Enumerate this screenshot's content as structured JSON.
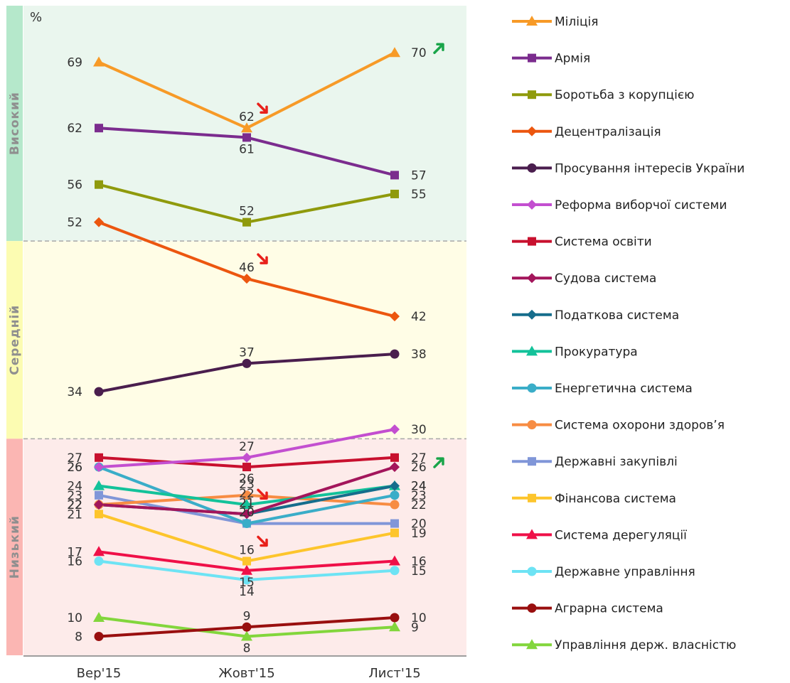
{
  "chart_data": {
    "type": "line",
    "ylabel": "%",
    "categories": [
      "Вер'15",
      "Жовт'15",
      "Лист'15"
    ],
    "ylim": [
      6,
      75
    ],
    "grid": false,
    "legend": "right",
    "zones": [
      {
        "label": "Високий",
        "from": 50,
        "to": 75,
        "bg": "#eaf6ee",
        "bar": "#b5e8cb"
      },
      {
        "label": "Середній",
        "from": 29,
        "to": 50,
        "bg": "#fffde6",
        "bar": "#fcfcb2"
      },
      {
        "label": "Низький",
        "from": 6,
        "to": 29,
        "bg": "#fdebea",
        "bar": "#fbb6b3"
      }
    ],
    "series": [
      {
        "name": "Міліція",
        "color": "#f79a27",
        "marker": "triangle",
        "values": [
          69,
          62,
          70
        ],
        "change": [
          null,
          "down",
          "up"
        ]
      },
      {
        "name": "Армія",
        "color": "#7b2c8e",
        "marker": "square",
        "values": [
          62,
          61,
          57
        ]
      },
      {
        "name": "Боротьба з корупцією",
        "color": "#8f9a0c",
        "marker": "square",
        "values": [
          56,
          52,
          55
        ]
      },
      {
        "name": "Децентралізація",
        "color": "#ec560f",
        "marker": "diamond",
        "values": [
          52,
          46,
          42
        ],
        "change": [
          null,
          "down",
          null
        ]
      },
      {
        "name": "Просування інтересів України",
        "color": "#4a1e4e",
        "marker": "circle",
        "values": [
          34,
          37,
          38
        ]
      },
      {
        "name": "Реформа виборчої системи",
        "color": "#c34fd0",
        "marker": "diamond",
        "values": [
          26,
          27,
          30
        ]
      },
      {
        "name": "Система освіти",
        "color": "#c8102e",
        "marker": "square",
        "values": [
          27,
          26,
          27
        ]
      },
      {
        "name": "Судова система",
        "color": "#a3155b",
        "marker": "diamond",
        "values": [
          22,
          21,
          26
        ],
        "change": [
          null,
          "down",
          "up"
        ]
      },
      {
        "name": "Податкова система",
        "color": "#166d8c",
        "marker": "diamond",
        "values": [
          22,
          21,
          24
        ]
      },
      {
        "name": "Прокуратура",
        "color": "#13c29a",
        "marker": "triangle",
        "values": [
          24,
          22,
          24
        ]
      },
      {
        "name": "Енергетична система",
        "color": "#3aadc8",
        "marker": "circle",
        "values": [
          26,
          20,
          23
        ]
      },
      {
        "name": "Система охорони здоров’я",
        "color": "#f78c43",
        "marker": "circle",
        "values": [
          22,
          23,
          22
        ]
      },
      {
        "name": "Державні закупівлі",
        "color": "#8096d8",
        "marker": "square",
        "values": [
          23,
          20,
          20
        ]
      },
      {
        "name": "Фінансова система",
        "color": "#fdc52c",
        "marker": "square",
        "values": [
          21,
          16,
          19
        ],
        "change": [
          null,
          "down",
          null
        ]
      },
      {
        "name": "Система дерегуляції",
        "color": "#ef1048",
        "marker": "triangle",
        "values": [
          17,
          15,
          16
        ]
      },
      {
        "name": "Державне управління",
        "color": "#6de3f4",
        "marker": "circle",
        "values": [
          16,
          14,
          15
        ]
      },
      {
        "name": "Аграрна система",
        "color": "#990f0f",
        "marker": "circle",
        "values": [
          8,
          9,
          10
        ]
      },
      {
        "name": "Управління держ. власністю",
        "color": "#82d63c",
        "marker": "triangle",
        "values": [
          10,
          8,
          9
        ]
      }
    ],
    "point_labels": [
      {
        "text": "69",
        "series": 0,
        "x": 0
      },
      {
        "text": "62",
        "series": 0,
        "x": 1
      },
      {
        "text": "70",
        "series": 0,
        "x": 2
      },
      {
        "text": "62",
        "series": 1,
        "x": 0
      },
      {
        "text": "61",
        "series": 1,
        "x": 1
      },
      {
        "text": "57",
        "series": 1,
        "x": 2
      },
      {
        "text": "56",
        "series": 2,
        "x": 0
      },
      {
        "text": "52",
        "series": 2,
        "x": 1
      },
      {
        "text": "55",
        "series": 2,
        "x": 2
      },
      {
        "text": "52",
        "series": 3,
        "x": 0
      },
      {
        "text": "46",
        "series": 3,
        "x": 1
      },
      {
        "text": "42",
        "series": 3,
        "x": 2
      },
      {
        "text": "34",
        "series": 4,
        "x": 0
      },
      {
        "text": "37",
        "series": 4,
        "x": 1
      },
      {
        "text": "38",
        "series": 4,
        "x": 2
      },
      {
        "text": "27",
        "series": 6,
        "x": 0
      },
      {
        "text": "26",
        "series": 5,
        "x": 0
      },
      {
        "text": "26",
        "series": 10,
        "x": 0
      },
      {
        "text": "24",
        "series": 9,
        "x": 0
      },
      {
        "text": "23",
        "series": 12,
        "x": 0
      },
      {
        "text": "22",
        "series": 11,
        "x": 0
      },
      {
        "text": "22",
        "series": 8,
        "x": 0
      },
      {
        "text": "22",
        "series": 7,
        "x": 0
      },
      {
        "text": "21",
        "series": 13,
        "x": 0
      },
      {
        "text": "17",
        "series": 14,
        "x": 0
      },
      {
        "text": "16",
        "series": 15,
        "x": 0
      },
      {
        "text": "10",
        "series": 17,
        "x": 0
      },
      {
        "text": "8",
        "series": 16,
        "x": 0
      },
      {
        "text": "27",
        "series": 5,
        "x": 1
      },
      {
        "text": "26",
        "series": 6,
        "x": 1
      },
      {
        "text": "23",
        "series": 11,
        "x": 1
      },
      {
        "text": "22",
        "series": 9,
        "x": 1
      },
      {
        "text": "21",
        "series": 7,
        "x": 1
      },
      {
        "text": "21",
        "series": 8,
        "x": 1
      },
      {
        "text": "20",
        "series": 10,
        "x": 1
      },
      {
        "text": "20",
        "series": 12,
        "x": 1
      },
      {
        "text": "16",
        "series": 13,
        "x": 1
      },
      {
        "text": "15",
        "series": 14,
        "x": 1
      },
      {
        "text": "14",
        "series": 15,
        "x": 1
      },
      {
        "text": "9",
        "series": 16,
        "x": 1
      },
      {
        "text": "8",
        "series": 17,
        "x": 1
      },
      {
        "text": "30",
        "series": 5,
        "x": 2
      },
      {
        "text": "27",
        "series": 6,
        "x": 2
      },
      {
        "text": "26",
        "series": 7,
        "x": 2
      },
      {
        "text": "24",
        "series": 8,
        "x": 2
      },
      {
        "text": "24",
        "series": 9,
        "x": 2
      },
      {
        "text": "23",
        "series": 10,
        "x": 2
      },
      {
        "text": "22",
        "series": 11,
        "x": 2
      },
      {
        "text": "20",
        "series": 12,
        "x": 2
      },
      {
        "text": "19",
        "series": 13,
        "x": 2
      },
      {
        "text": "16",
        "series": 14,
        "x": 2
      },
      {
        "text": "15",
        "series": 15,
        "x": 2
      },
      {
        "text": "10",
        "series": 16,
        "x": 2
      },
      {
        "text": "9",
        "series": 17,
        "x": 2
      }
    ],
    "trend_colors": {
      "up": "#1aa54a",
      "down": "#e8201a"
    }
  }
}
